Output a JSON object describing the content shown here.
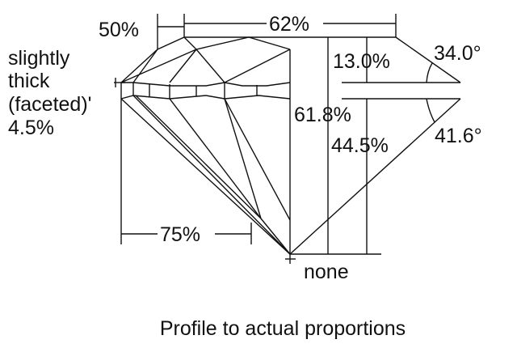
{
  "labels": {
    "table_width": "50%",
    "total_width": "62%",
    "girdle_line1": "slightly",
    "girdle_line2": "thick",
    "girdle_line3": "(faceted)'",
    "girdle_value": "4.5%",
    "crown_height": "13.0%",
    "crown_angle": "34.0°",
    "total_depth": "61.8%",
    "pavilion_depth": "44.5%",
    "pavilion_angle": "41.6°",
    "lower_half": "75%",
    "culet": "none"
  },
  "caption": "Profile to actual proportions"
}
